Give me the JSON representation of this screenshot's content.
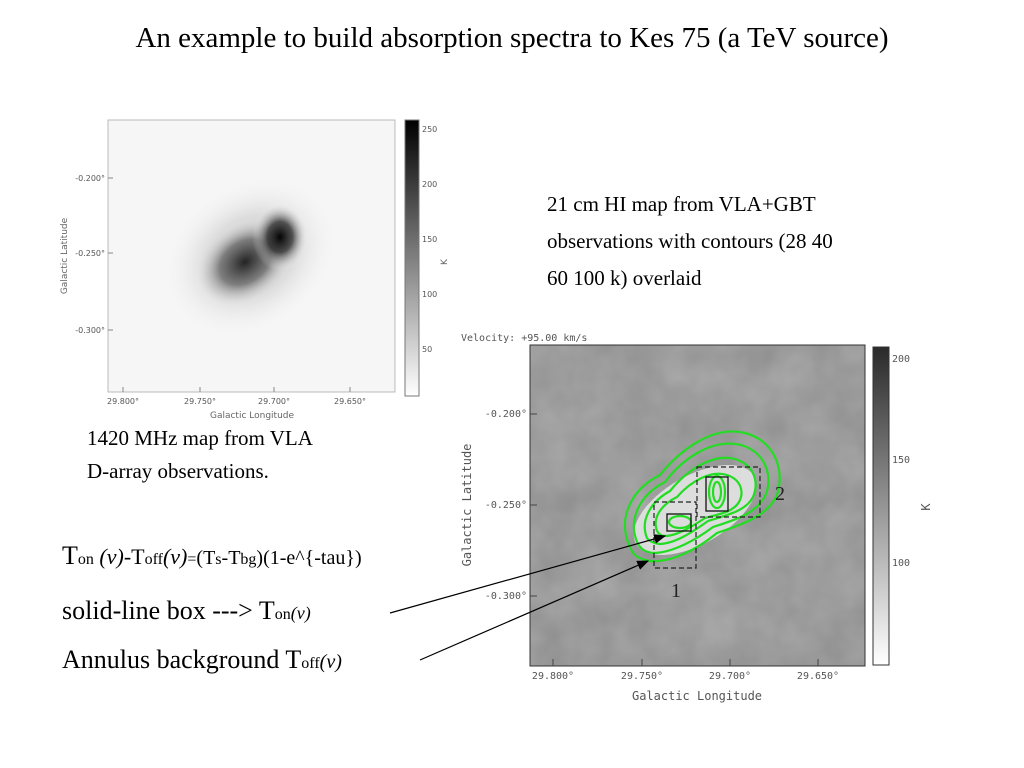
{
  "title": "An example to build absorption spectra to Kes 75 (a TeV source)",
  "left_map": {
    "caption_line1": "1420 MHz map from VLA",
    "caption_line2": "D-array observations.",
    "y_axis_title": "Galactic Latitude",
    "x_axis_title": "Galactic Longitude",
    "y_ticks": [
      "-0.200°",
      "-0.250°",
      "-0.300°"
    ],
    "x_ticks": [
      "29.800°",
      "29.750°",
      "29.700°",
      "29.650°"
    ],
    "colorbar_ticks": [
      "250",
      "200",
      "150",
      "100",
      "50"
    ],
    "colorbar_unit": "K"
  },
  "right_map": {
    "caption_line1": "21 cm HI map from VLA+GBT",
    "caption_line2": "observations with contours (28 40",
    "caption_line3": "60 100 k) overlaid",
    "velocity_label": "Velocity: +95.00 km/s",
    "y_axis_title": "Galactic Latitude",
    "x_axis_title": "Galactic Longitude",
    "y_ticks": [
      "-0.200°",
      "-0.250°",
      "-0.300°"
    ],
    "x_ticks": [
      "29.800°",
      "29.750°",
      "29.700°",
      "29.650°"
    ],
    "colorbar_ticks": [
      "200",
      "150",
      "100"
    ],
    "colorbar_unit": "K",
    "region_labels": [
      "1",
      "2"
    ],
    "contour_color": "#22dd22"
  },
  "equation": {
    "T": "T",
    "on": "on",
    "nu_open": " (v)",
    "dash_T": "-T",
    "off": "off",
    "nu2": "(v)",
    "eq": "=",
    "paren_T": "(T",
    "s": "s",
    "minus_T": "-T",
    "bg": "bg",
    "rest": ")(1-e^{-tau})"
  },
  "line2": {
    "text": "solid-line box ---> T",
    "sub": "on",
    "nu": "(v)"
  },
  "line3": {
    "text": "Annulus background T",
    "sub": "off",
    "nu": "(v)"
  }
}
